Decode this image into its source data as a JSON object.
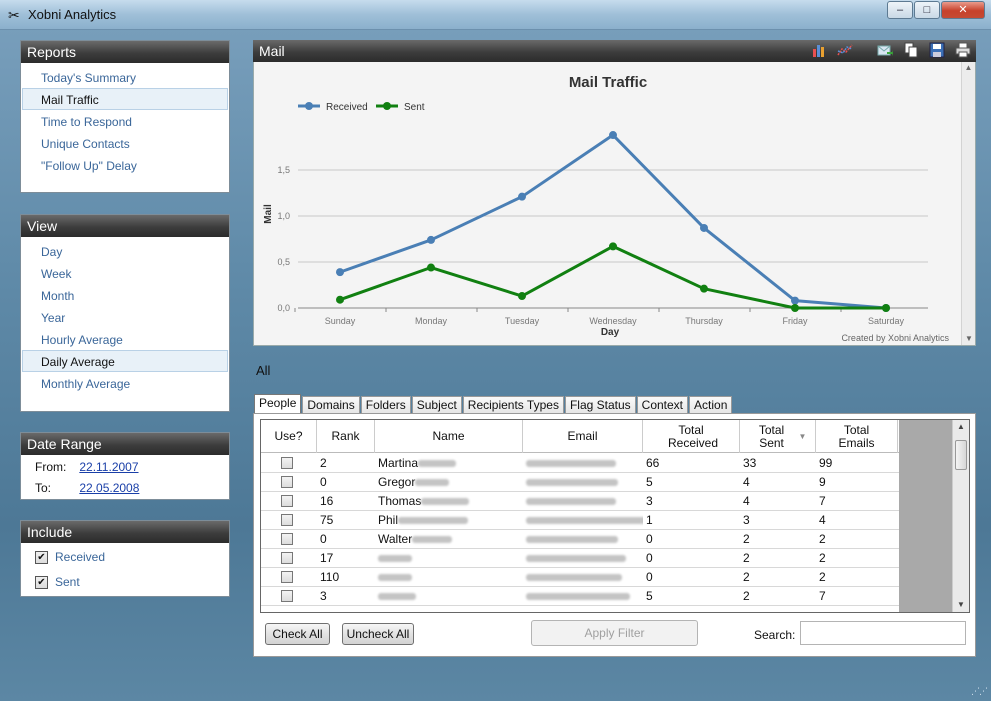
{
  "window": {
    "title": "Xobni Analytics",
    "buttons": {
      "minimize": "‒",
      "maximize": "□",
      "close": "✕"
    }
  },
  "reports": {
    "header": "Reports",
    "items": [
      {
        "label": "Today's Summary",
        "selected": false
      },
      {
        "label": "Mail Traffic",
        "selected": true
      },
      {
        "label": "Time to Respond",
        "selected": false
      },
      {
        "label": "Unique Contacts",
        "selected": false
      },
      {
        "label": "\"Follow Up\" Delay",
        "selected": false
      }
    ]
  },
  "view": {
    "header": "View",
    "items": [
      {
        "label": "Day",
        "selected": false
      },
      {
        "label": "Week",
        "selected": false
      },
      {
        "label": "Month",
        "selected": false
      },
      {
        "label": "Year",
        "selected": false
      },
      {
        "label": "Hourly Average",
        "selected": false
      },
      {
        "label": "Daily Average",
        "selected": true
      },
      {
        "label": "Monthly Average",
        "selected": false
      }
    ]
  },
  "date_range": {
    "header": "Date Range",
    "from_label": "From:",
    "from_value": "22.11.2007",
    "to_label": "To:",
    "to_value": "22.05.2008"
  },
  "include": {
    "header": "Include",
    "items": [
      {
        "label": "Received",
        "checked": true
      },
      {
        "label": "Sent",
        "checked": true
      }
    ]
  },
  "mail_panel": {
    "header": "Mail",
    "toolbar_icons": [
      "bar-chart-icon",
      "line-chart-icon",
      "email-icon",
      "copy-icon",
      "save-icon",
      "print-icon"
    ]
  },
  "chart_data": {
    "type": "line",
    "title": "Mail Traffic",
    "xlabel": "Day",
    "ylabel": "Mail",
    "categories": [
      "Sunday",
      "Monday",
      "Tuesday",
      "Wednesday",
      "Thursday",
      "Friday",
      "Saturday"
    ],
    "yticks": [
      "0,0",
      "0,5",
      "1,0",
      "1,5"
    ],
    "ylim": [
      0,
      2
    ],
    "grid": true,
    "legend": "top-left",
    "credit": "Created by Xobni Analytics",
    "series": [
      {
        "name": "Received",
        "color": "#4a7fb5",
        "values": [
          0.39,
          0.74,
          1.21,
          1.88,
          0.87,
          0.08,
          0.0
        ]
      },
      {
        "name": "Sent",
        "color": "#118011",
        "values": [
          0.09,
          0.44,
          0.13,
          0.67,
          0.21,
          0.0,
          0.0
        ]
      }
    ]
  },
  "filter_label": "All",
  "tabs": [
    {
      "label": "People",
      "active": true
    },
    {
      "label": "Domains",
      "active": false
    },
    {
      "label": "Folders",
      "active": false
    },
    {
      "label": "Subject",
      "active": false
    },
    {
      "label": "Recipients Types",
      "active": false
    },
    {
      "label": "Flag Status",
      "active": false
    },
    {
      "label": "Context",
      "active": false
    },
    {
      "label": "Action",
      "active": false
    }
  ],
  "grid": {
    "columns": [
      {
        "key": "use",
        "label": "Use?"
      },
      {
        "key": "rank",
        "label": "Rank"
      },
      {
        "key": "name",
        "label": "Name"
      },
      {
        "key": "email",
        "label": "Email"
      },
      {
        "key": "received",
        "label": "Total Received"
      },
      {
        "key": "sent",
        "label": "Total Sent"
      },
      {
        "key": "emails",
        "label": "Total Emails"
      }
    ],
    "rows": [
      {
        "rank": "2",
        "name": "Martina",
        "received": "66",
        "sent": "33",
        "emails": "99"
      },
      {
        "rank": "0",
        "name": "Gregor",
        "received": "5",
        "sent": "4",
        "emails": "9"
      },
      {
        "rank": "16",
        "name": "Thomas",
        "received": "3",
        "sent": "4",
        "emails": "7"
      },
      {
        "rank": "75",
        "name": "Phil",
        "received": "1",
        "sent": "3",
        "emails": "4"
      },
      {
        "rank": "0",
        "name": "Walter",
        "received": "0",
        "sent": "2",
        "emails": "2"
      },
      {
        "rank": "17",
        "name": "",
        "received": "0",
        "sent": "2",
        "emails": "2"
      },
      {
        "rank": "110",
        "name": "",
        "received": "0",
        "sent": "2",
        "emails": "2"
      },
      {
        "rank": "3",
        "name": "",
        "received": "5",
        "sent": "2",
        "emails": "7"
      }
    ]
  },
  "buttons": {
    "check_all": "Check All",
    "uncheck_all": "Uncheck All",
    "apply_filter": "Apply Filter"
  },
  "search": {
    "label": "Search:",
    "value": ""
  }
}
